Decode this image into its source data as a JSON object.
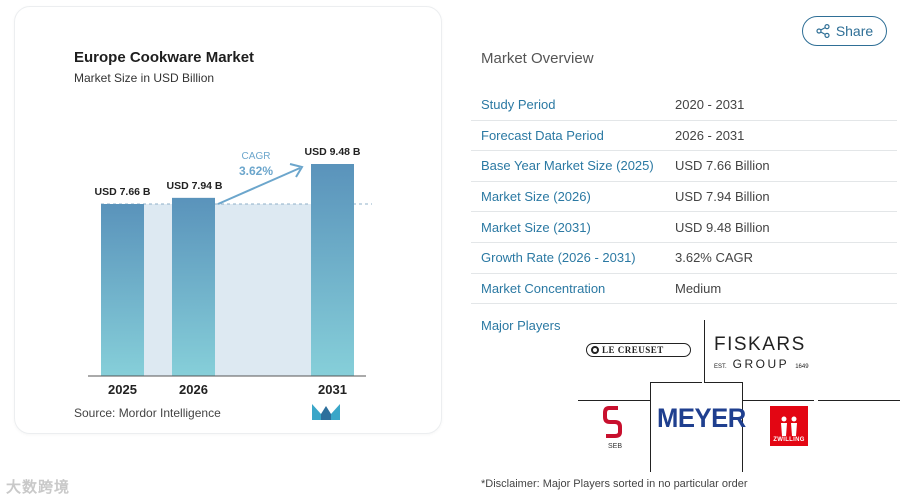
{
  "chart_data": {
    "type": "bar",
    "title": "Europe Cookware Market",
    "subtitle": "Market Size in USD Billion",
    "categories": [
      "2025",
      "2026",
      "2031"
    ],
    "values": [
      7.66,
      7.94,
      9.48
    ],
    "data_labels": [
      "USD 7.66 B",
      "USD 7.94 B",
      "USD 9.48 B"
    ],
    "annotation": {
      "label": "CAGR",
      "value": "3.62%"
    },
    "source": "Source: Mordor Intelligence",
    "bar_color_top": "#5a93bb",
    "bar_color_bottom": "#86cfd9",
    "shade_color": "#dde9f2",
    "arrow_color": "#6ca6cc"
  },
  "share": {
    "label": "Share",
    "icon": "share-icon"
  },
  "overview": {
    "title": "Market Overview",
    "rows": [
      {
        "key": "Study Period",
        "value": "2020 - 2031"
      },
      {
        "key": "Forecast Data Period",
        "value": "2026 - 2031"
      },
      {
        "key": "Base Year Market Size (2025)",
        "value": "USD 7.66 Billion"
      },
      {
        "key": "Market Size (2026)",
        "value": "USD 7.94 Billion"
      },
      {
        "key": "Market Size (2031)",
        "value": "USD 9.48 Billion"
      },
      {
        "key": "Growth Rate (2026 - 2031)",
        "value": "3.62% CAGR"
      },
      {
        "key": "Market Concentration",
        "value": "Medium"
      }
    ],
    "players_label": "Major Players",
    "players": {
      "le_creuset": "LE CREUSET",
      "fiskars": "FISKARS",
      "fiskars_est": "EST.",
      "fiskars_group": "GROUP",
      "fiskars_year": "1649",
      "seb": "SEB",
      "meyer": "MEYER",
      "zwilling": "ZWILLING"
    }
  },
  "disclaimer": "*Disclaimer: Major Players sorted in no particular order",
  "watermark": "大数跨境"
}
